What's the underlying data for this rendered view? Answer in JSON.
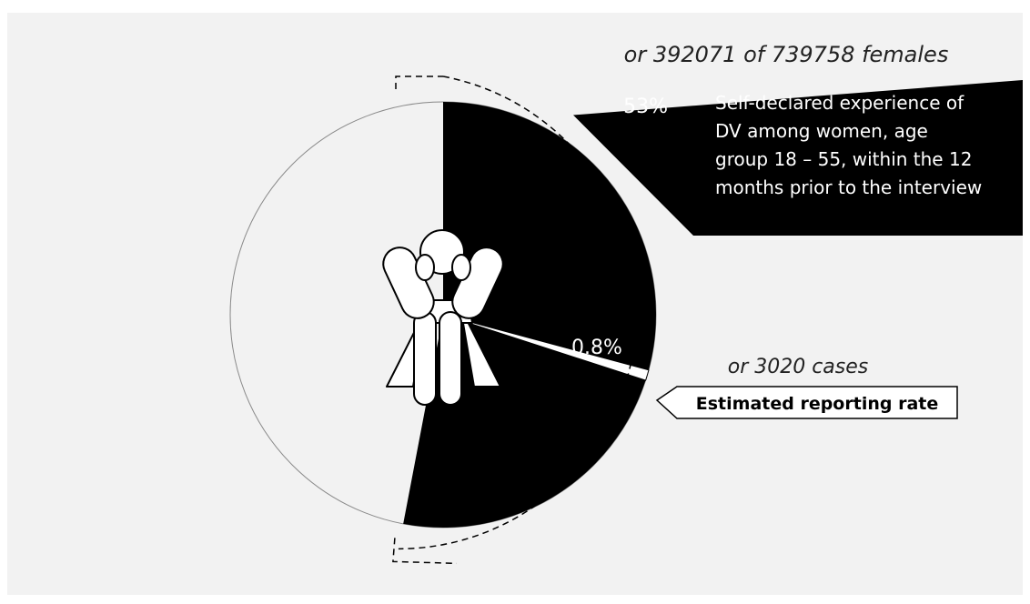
{
  "chart_data": {
    "type": "pie",
    "title": "",
    "slices": [
      {
        "label": "Self-declared experience of DV among women, age group 18 – 55, within the 12 months prior to the interview",
        "percent": 53,
        "value": 392071,
        "color": "#000000"
      },
      {
        "label": "Estimated reporting rate",
        "percent": 0.8,
        "value": 3020,
        "color": "#ffffff"
      }
    ],
    "total": 739758
  },
  "labels": {
    "main_percent": "53%",
    "main_caption_lines": [
      "Self-declared experience of",
      "DV among women, age",
      "group 18 – 55, within the 12",
      "months prior to the interview"
    ],
    "main_count": "or 392071 of 739758 females",
    "small_percent": "0.8%",
    "small_count": "or 3020 cases",
    "callout": "Estimated reporting rate"
  },
  "icons": {
    "center": "distressed-woman-icon"
  },
  "colors": {
    "background": "#f2f2f2",
    "pie_fill": "#f2f2f2",
    "highlight": "#000000"
  }
}
